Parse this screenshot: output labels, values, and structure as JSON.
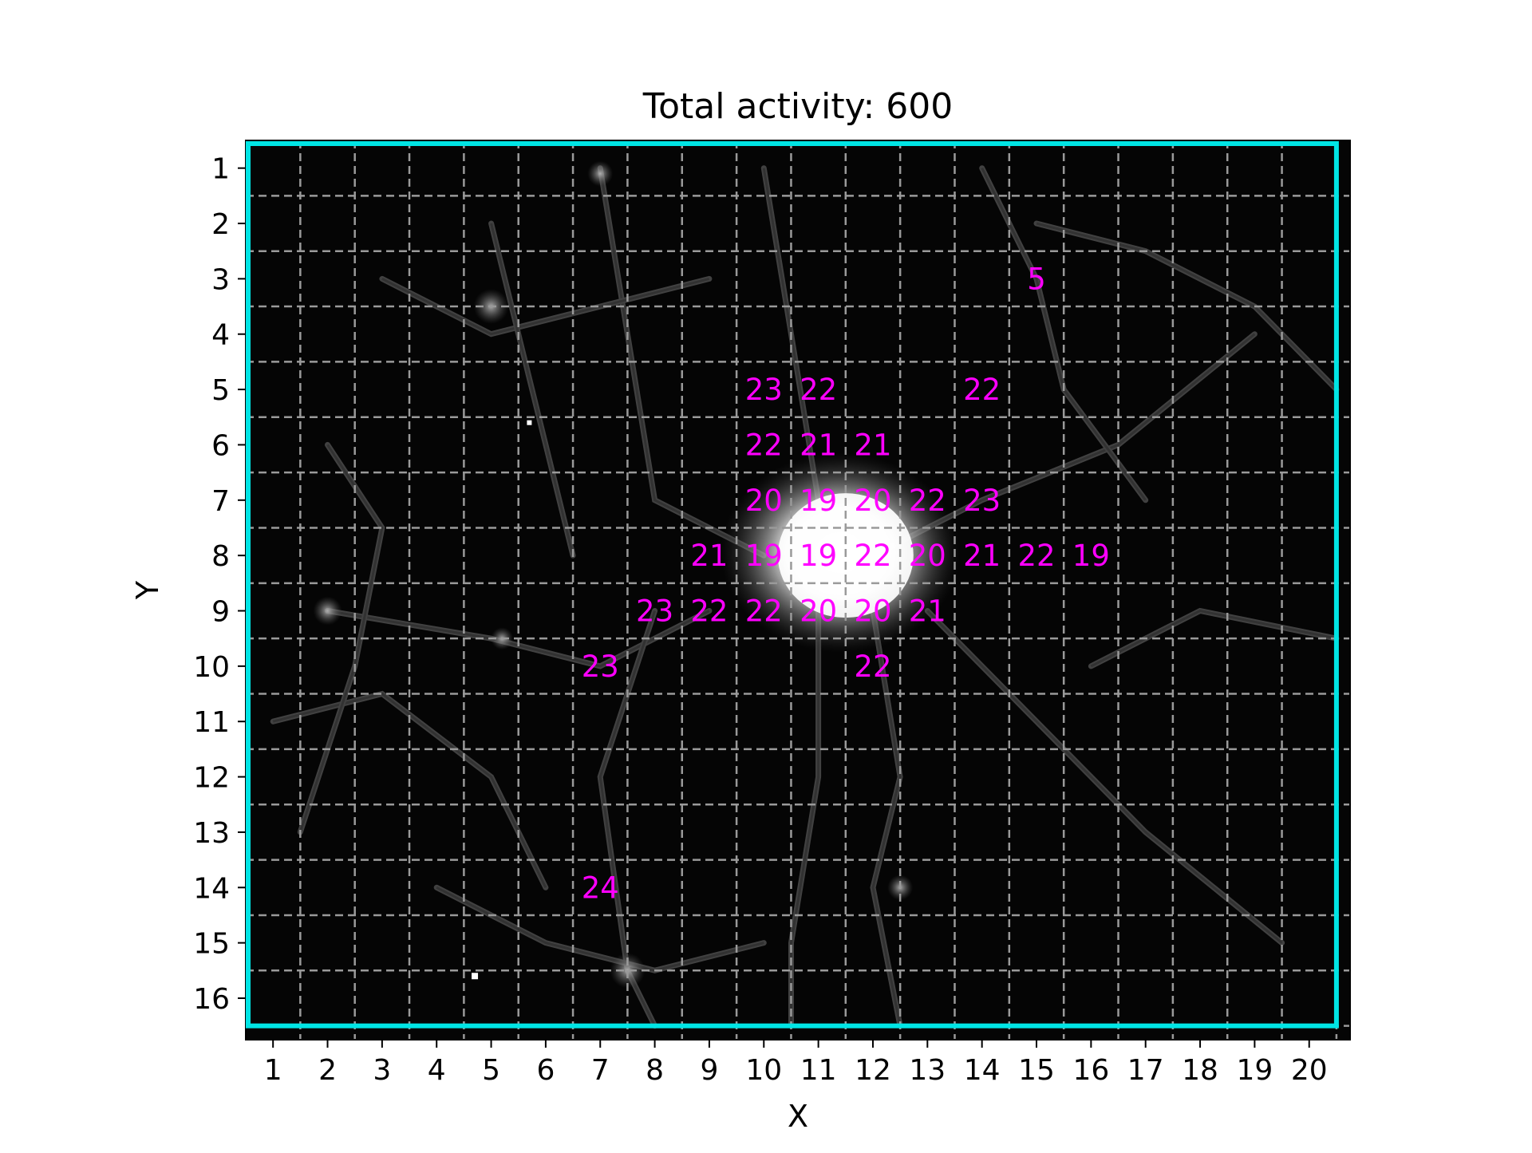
{
  "chart_data": {
    "type": "heatmap",
    "title": "Total activity: 600",
    "xlabel": "X",
    "ylabel": "Y",
    "xlim": [
      0.5,
      20.75
    ],
    "ylim": [
      0.5,
      16.75
    ],
    "x_ticks": [
      1,
      2,
      3,
      4,
      5,
      6,
      7,
      8,
      9,
      10,
      11,
      12,
      13,
      14,
      15,
      16,
      17,
      18,
      19,
      20
    ],
    "y_ticks": [
      1,
      2,
      3,
      4,
      5,
      6,
      7,
      8,
      9,
      10,
      11,
      12,
      13,
      14,
      15,
      16
    ],
    "grid": true,
    "label_color": "#ff00ff",
    "border_color": "#00e5e5",
    "grid_color": "#9a9a9a",
    "background_color": "#050505",
    "cells": [
      {
        "x": 15,
        "y": 3,
        "value": "5"
      },
      {
        "x": 10,
        "y": 5,
        "value": "23"
      },
      {
        "x": 11,
        "y": 5,
        "value": "22"
      },
      {
        "x": 14,
        "y": 5,
        "value": "22"
      },
      {
        "x": 10,
        "y": 6,
        "value": "22"
      },
      {
        "x": 11,
        "y": 6,
        "value": "21"
      },
      {
        "x": 12,
        "y": 6,
        "value": "21"
      },
      {
        "x": 10,
        "y": 7,
        "value": "20"
      },
      {
        "x": 11,
        "y": 7,
        "value": "19"
      },
      {
        "x": 12,
        "y": 7,
        "value": "20"
      },
      {
        "x": 13,
        "y": 7,
        "value": "22"
      },
      {
        "x": 14,
        "y": 7,
        "value": "23"
      },
      {
        "x": 9,
        "y": 8,
        "value": "21"
      },
      {
        "x": 10,
        "y": 8,
        "value": "19"
      },
      {
        "x": 11,
        "y": 8,
        "value": "19"
      },
      {
        "x": 12,
        "y": 8,
        "value": "22"
      },
      {
        "x": 13,
        "y": 8,
        "value": "20"
      },
      {
        "x": 14,
        "y": 8,
        "value": "21"
      },
      {
        "x": 15,
        "y": 8,
        "value": "22"
      },
      {
        "x": 16,
        "y": 8,
        "value": "19"
      },
      {
        "x": 8,
        "y": 9,
        "value": "23"
      },
      {
        "x": 9,
        "y": 9,
        "value": "22"
      },
      {
        "x": 10,
        "y": 9,
        "value": "22"
      },
      {
        "x": 11,
        "y": 9,
        "value": "20"
      },
      {
        "x": 12,
        "y": 9,
        "value": "20"
      },
      {
        "x": 13,
        "y": 9,
        "value": "21"
      },
      {
        "x": 7,
        "y": 10,
        "value": "23"
      },
      {
        "x": 12,
        "y": 10,
        "value": "22"
      },
      {
        "x": 7,
        "y": 14,
        "value": "24"
      }
    ]
  }
}
